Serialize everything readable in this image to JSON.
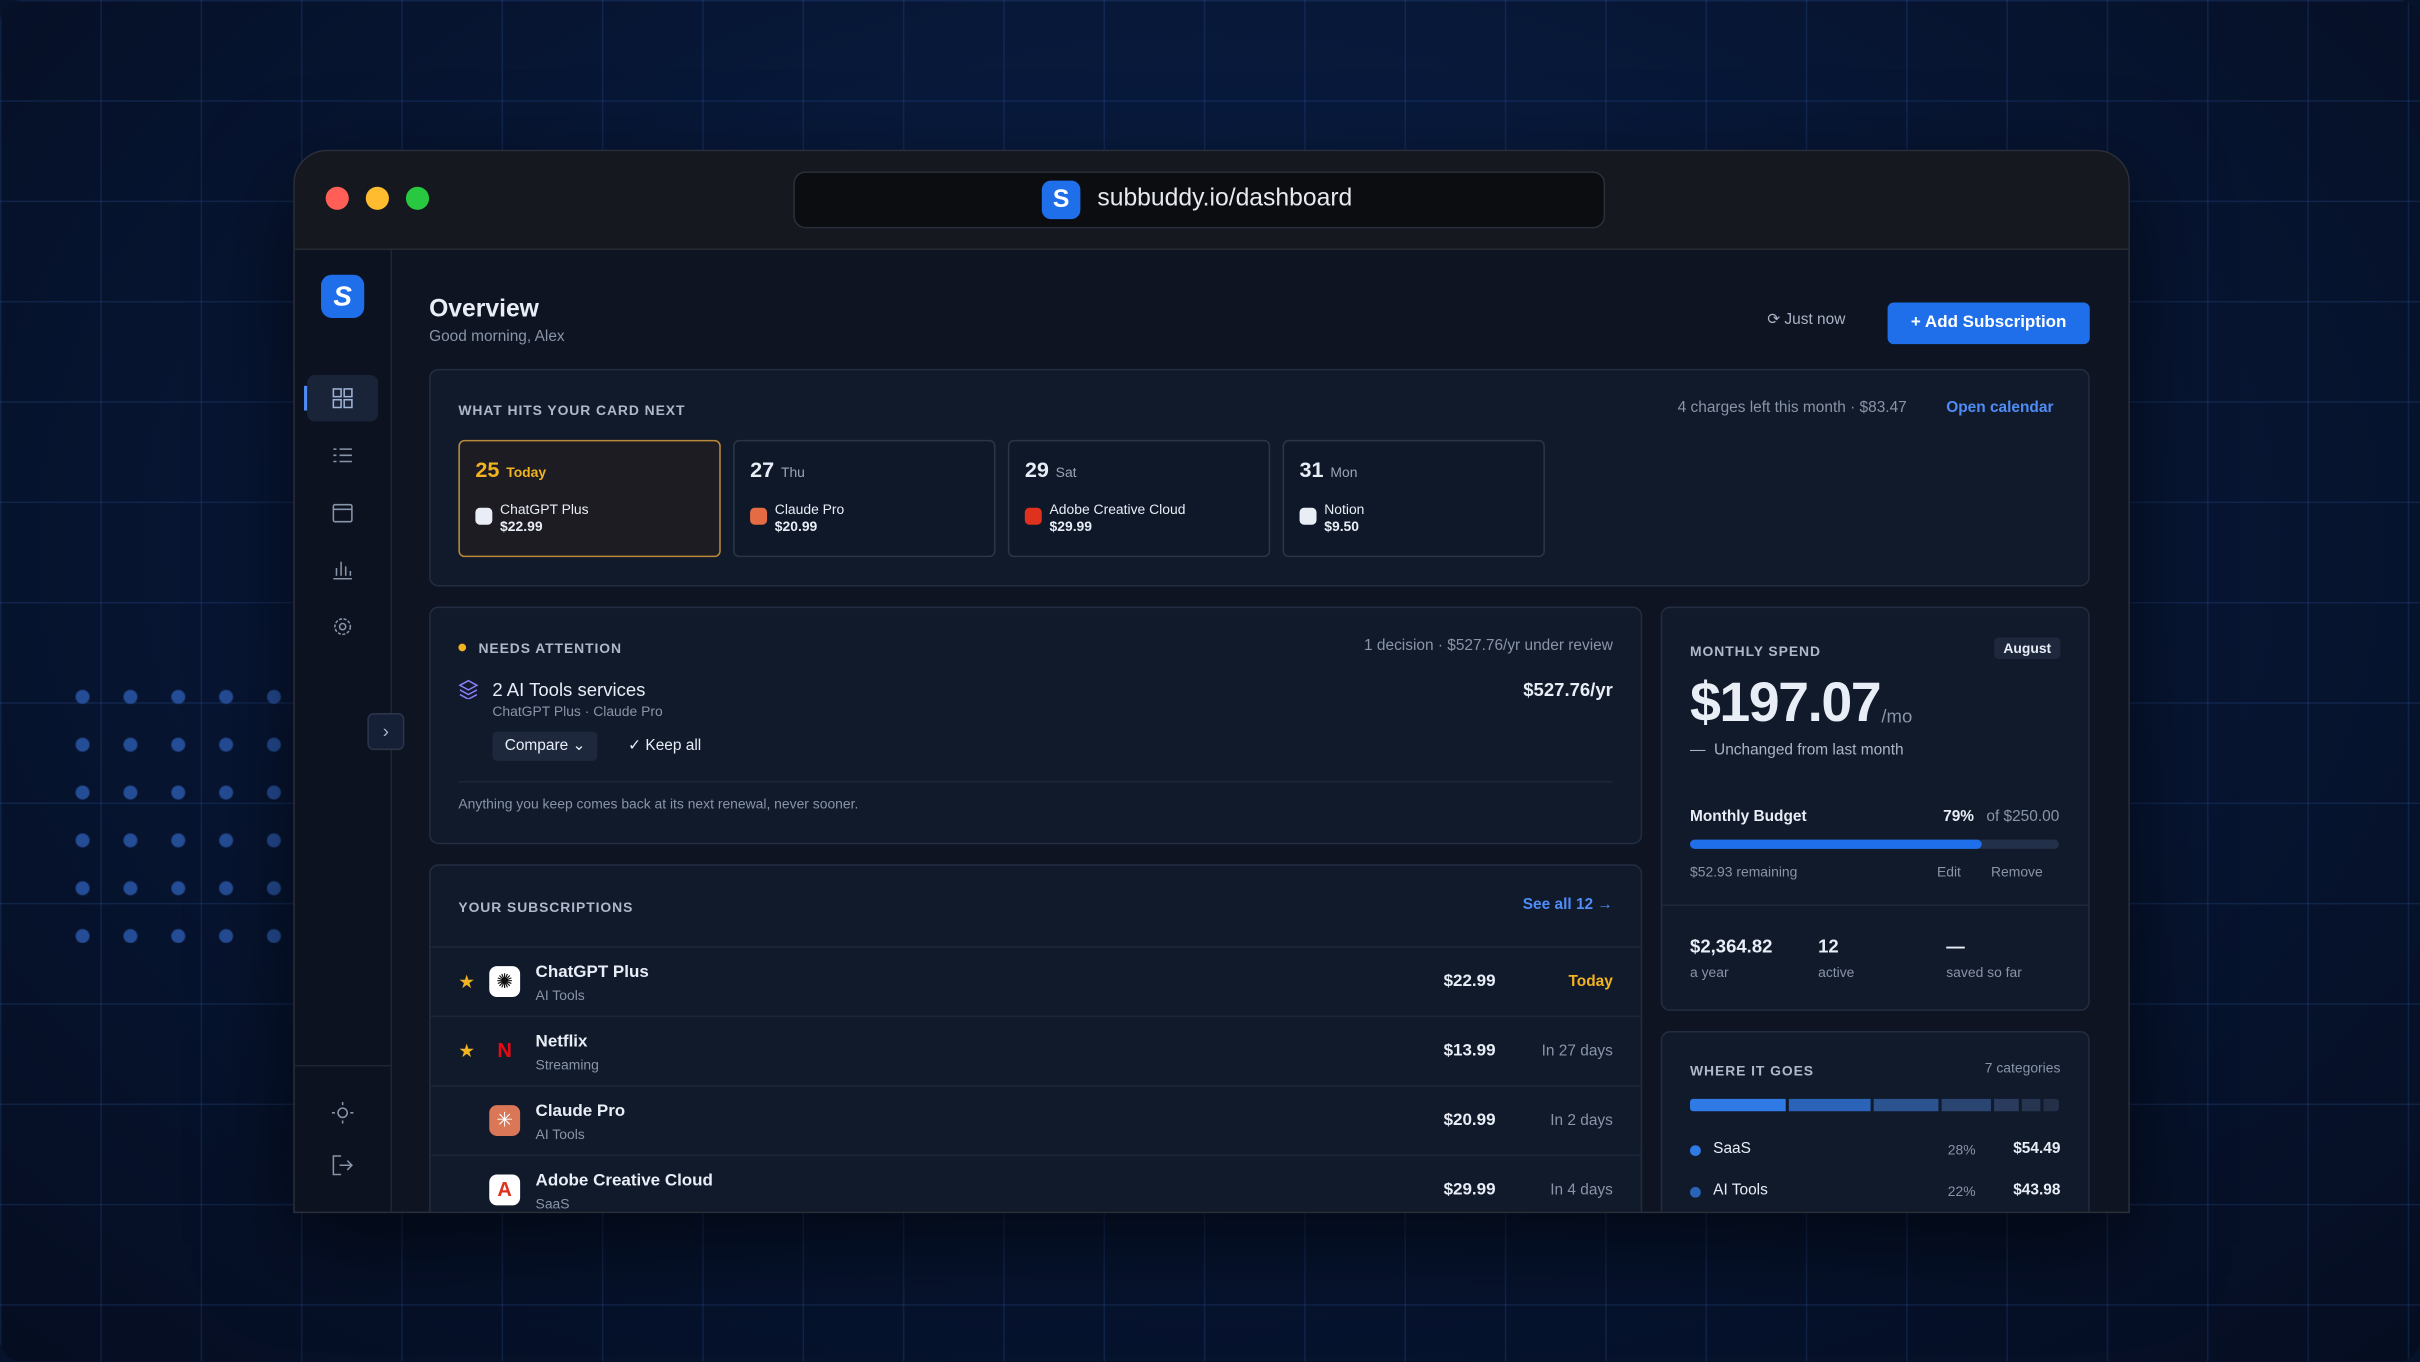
{
  "browser": {
    "url": "subbuddy.io/dashboard",
    "logo": "S"
  },
  "header": {
    "title": "Overview",
    "greeting": "Good morning, Alex",
    "sync": "Just now",
    "add_button": "Add Subscription"
  },
  "upcoming": {
    "title": "WHAT HITS YOUR CARD NEXT",
    "summary": "4 charges left this month · $83.47",
    "link": "Open calendar",
    "cards": [
      {
        "day": "25",
        "weekday": "Today",
        "name": "ChatGPT Plus",
        "price": "$22.99"
      },
      {
        "day": "27",
        "weekday": "Thu",
        "name": "Claude Pro",
        "price": "$20.99"
      },
      {
        "day": "29",
        "weekday": "Sat",
        "name": "Adobe Creative Cloud",
        "price": "$29.99"
      },
      {
        "day": "31",
        "weekday": "Mon",
        "name": "Notion",
        "price": "$9.50"
      }
    ]
  },
  "attention": {
    "title": "NEEDS ATTENTION",
    "summary": "1 decision · $527.76/yr under review",
    "item": "2 AI Tools services",
    "sub": "ChatGPT Plus · Claude Pro",
    "amount": "$527.76/yr",
    "compare": "Compare",
    "keep": "Keep all",
    "note": "Anything you keep comes back at its next renewal, never sooner."
  },
  "subscriptions": {
    "title": "YOUR SUBSCRIPTIONS",
    "link": "See all 12",
    "rows": [
      {
        "name": "ChatGPT Plus",
        "category": "AI Tools",
        "price": "$22.99",
        "due": "Today"
      },
      {
        "name": "Netflix",
        "category": "Streaming",
        "price": "$13.99",
        "due": "In 27 days"
      },
      {
        "name": "Claude Pro",
        "category": "AI Tools",
        "price": "$20.99",
        "due": "In 2 days"
      },
      {
        "name": "Adobe Creative Cloud",
        "category": "SaaS",
        "price": "$29.99",
        "due": "In 4 days"
      }
    ]
  },
  "spend": {
    "title": "MONTHLY SPEND",
    "month": "August",
    "amount": "$197.07",
    "unit": "/mo",
    "change": "Unchanged from last month",
    "budget_label": "Monthly Budget",
    "budget_percent": "79%",
    "budget_of": "of $250.00",
    "remaining": "$52.93 remaining",
    "edit": "Edit",
    "remove": "Remove",
    "stats": [
      {
        "value": "$2,364.82",
        "label": "a year"
      },
      {
        "value": "12",
        "label": "active"
      },
      {
        "value": "—",
        "label": "saved so far"
      }
    ]
  },
  "categories": {
    "title": "WHERE IT GOES",
    "count": "7 categories",
    "items": [
      {
        "name": "SaaS",
        "percent": "28%",
        "amount": "$54.49"
      },
      {
        "name": "AI Tools",
        "percent": "22%",
        "amount": "$43.98"
      }
    ]
  }
}
